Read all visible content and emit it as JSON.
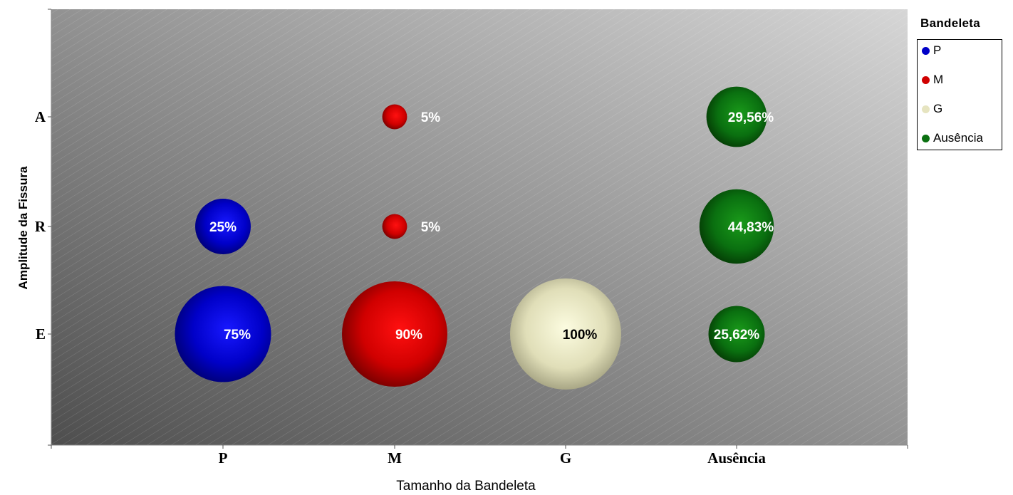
{
  "chart_data": {
    "type": "bubble",
    "x_categories": [
      "P",
      "M",
      "G",
      "Ausência"
    ],
    "y_categories": [
      "E",
      "R",
      "A"
    ],
    "xlabel": "Tamanho da Bandeleta",
    "ylabel": "Amplitude da Fissura",
    "legend_title": "Bandeleta",
    "legend_position": "right",
    "series": [
      {
        "name": "P",
        "color": "#0000c8",
        "points": [
          {
            "x": "P",
            "y": "R",
            "value": 25,
            "label": "25%"
          },
          {
            "x": "P",
            "y": "E",
            "value": 75,
            "label": "75%"
          }
        ]
      },
      {
        "name": "M",
        "color": "#d00000",
        "points": [
          {
            "x": "M",
            "y": "A",
            "value": 5,
            "label": "5%"
          },
          {
            "x": "M",
            "y": "R",
            "value": 5,
            "label": "5%"
          },
          {
            "x": "M",
            "y": "E",
            "value": 90,
            "label": "90%"
          }
        ]
      },
      {
        "name": "G",
        "color": "#e6e4c0",
        "points": [
          {
            "x": "G",
            "y": "E",
            "value": 100,
            "label": "100%"
          }
        ]
      },
      {
        "name": "Ausência",
        "color": "#0a7010",
        "points": [
          {
            "x": "Ausência",
            "y": "A",
            "value": 29.56,
            "label": "29,56%"
          },
          {
            "x": "Ausência",
            "y": "R",
            "value": 44.83,
            "label": "44,83%"
          },
          {
            "x": "Ausência",
            "y": "E",
            "value": 25.62,
            "label": "25,62%"
          }
        ]
      }
    ]
  }
}
